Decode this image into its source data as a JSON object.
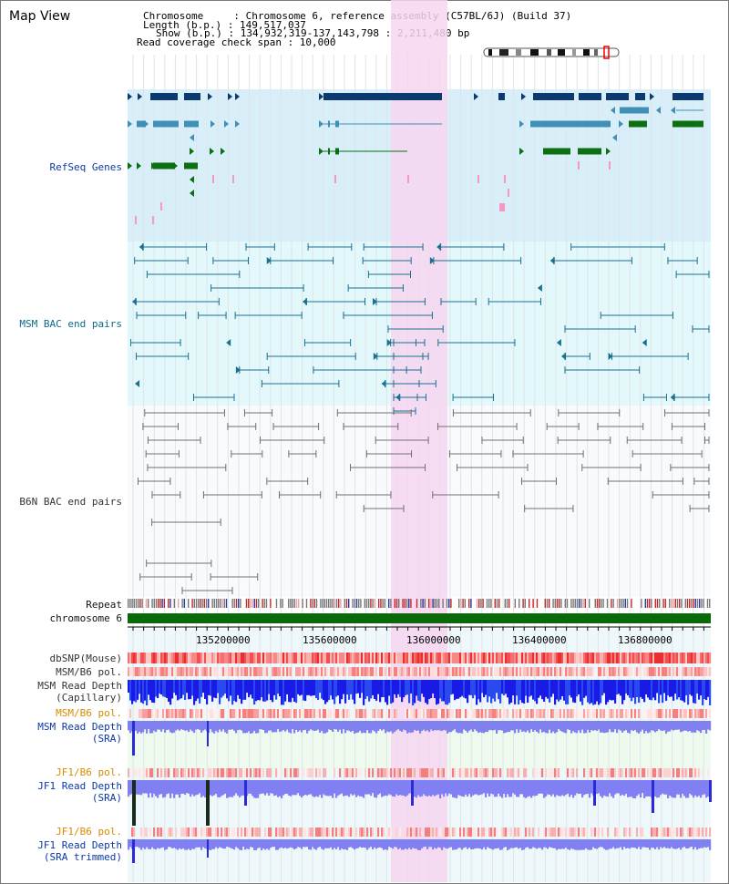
{
  "header": {
    "title": "Map View",
    "info_lines": [
      "Chromosome     : Chromosome 6, reference assembly (C57BL/6J) (Build 37)",
      "Length (b.p.) : 149,517,037",
      "Show (b.p.) : 134,932,319-137,143,798 : 2,211,480 bp",
      "Read coverage check span : 10,000"
    ]
  },
  "tracks": {
    "refseq": "RefSeq Genes",
    "msm_bac": "MSM BAC end pairs",
    "b6n_bac": "B6N BAC end pairs",
    "repeat": "Repeat",
    "chromosome": "chromosome 6",
    "dbsnp": "dbSNP(Mouse)",
    "msm_b6_pol_1": "MSM/B6 pol.",
    "msm_depth_cap_1": "MSM Read Depth",
    "msm_depth_cap_2": "(Capillary)",
    "msm_b6_pol_2": "MSM/B6 pol.",
    "msm_depth_sra_1": "MSM Read Depth",
    "msm_depth_sra_2": "(SRA)",
    "jf1_b6_pol_1": "JF1/B6 pol.",
    "jf1_depth_sra_1": "JF1 Read Depth",
    "jf1_depth_sra_2": "(SRA)",
    "jf1_b6_pol_2": "JF1/B6 pol.",
    "jf1_depth_trim_1": "JF1 Read Depth",
    "jf1_depth_trim_2": "(SRA trimmed)"
  },
  "axis": {
    "ticks": [
      "135200000",
      "135600000",
      "136000000",
      "136400000",
      "136800000"
    ]
  },
  "colors": {
    "refseq_bg": "#d8effa",
    "msm_bg": "#e2f8fa",
    "b6n_bg": "#f8fafc",
    "highlight": "#f6d6f0",
    "gene_dark": "#0a3a6e",
    "gene_mid": "#3f8fb7",
    "gene_green": "#0d6e12",
    "bac_teal": "#1a7090",
    "bac_grey": "#707070",
    "chrom": "#0a6a0a"
  }
}
